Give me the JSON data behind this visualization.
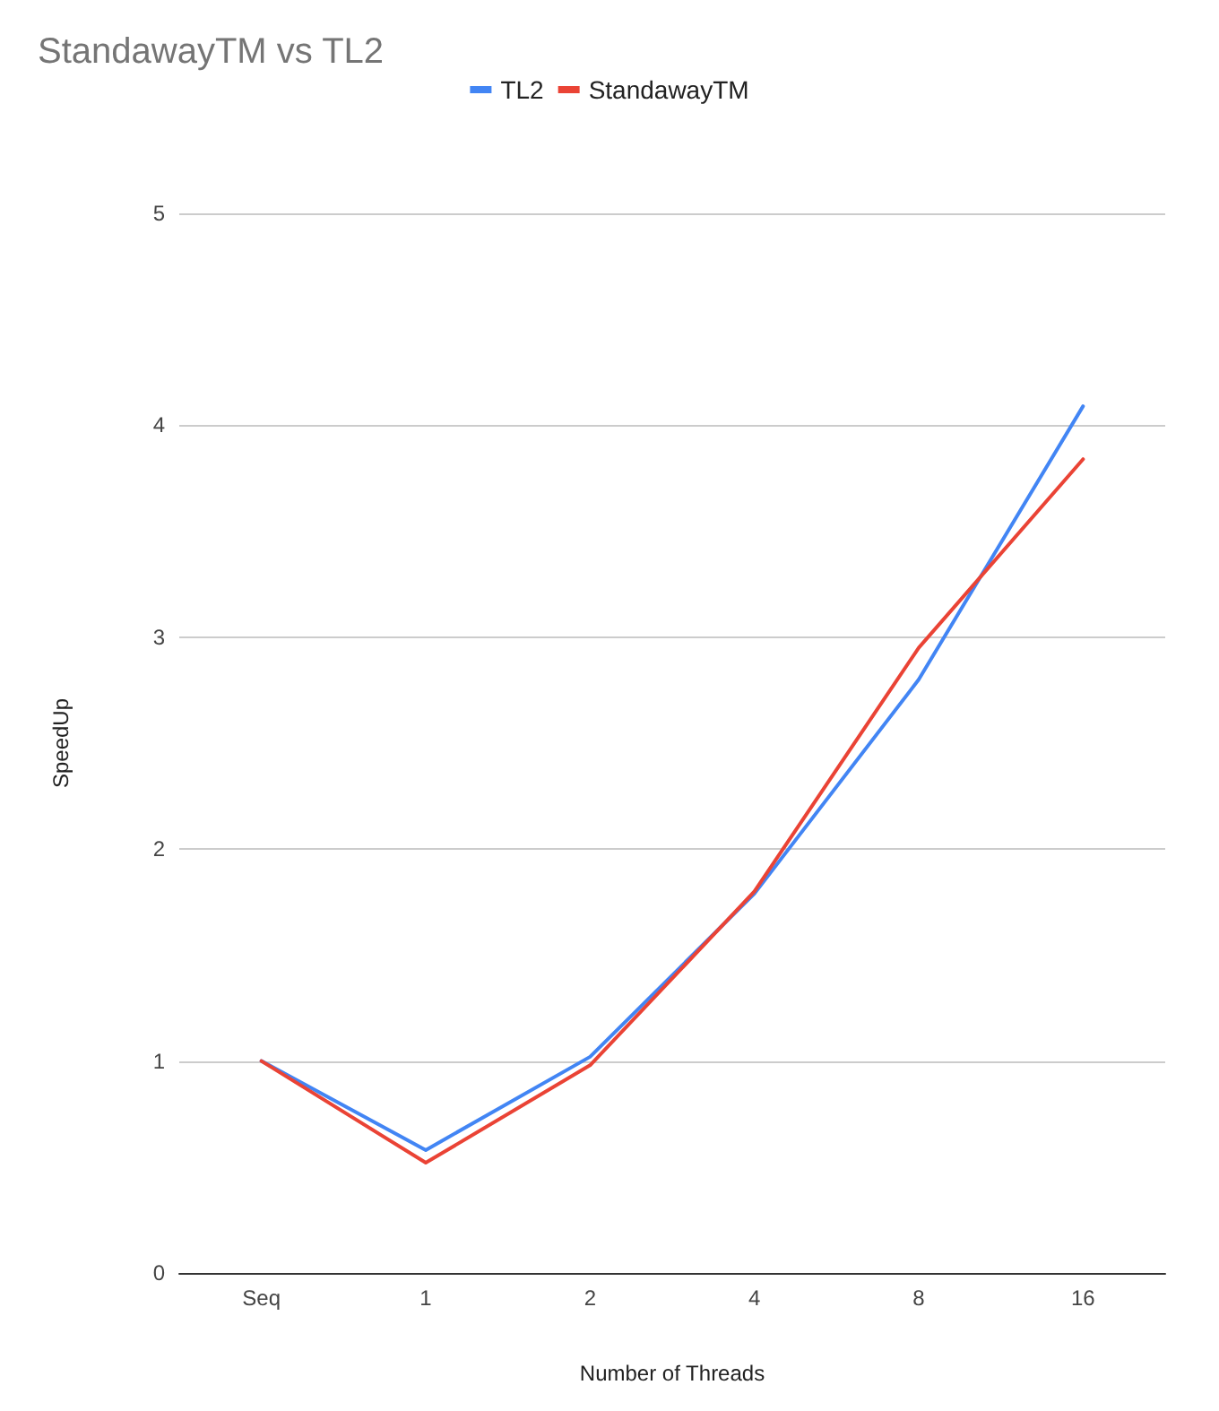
{
  "chart_data": {
    "type": "line",
    "title": "StandawayTM vs TL2",
    "xlabel": "Number of Threads",
    "ylabel": "SpeedUp",
    "categories": [
      "Seq",
      "1",
      "2",
      "4",
      "8",
      "16"
    ],
    "series": [
      {
        "name": "TL2",
        "color": "#4285f4",
        "values": [
          1.0,
          0.58,
          1.02,
          1.79,
          2.8,
          4.09
        ]
      },
      {
        "name": "StandawayTM",
        "color": "#ea4335",
        "values": [
          1.0,
          0.52,
          0.98,
          1.8,
          2.95,
          3.84
        ]
      }
    ],
    "ylim": [
      0,
      5
    ],
    "yticks": [
      0,
      1,
      2,
      3,
      4,
      5
    ],
    "grid": "y",
    "legend": "top",
    "marker": "none",
    "line_style": "solid"
  }
}
